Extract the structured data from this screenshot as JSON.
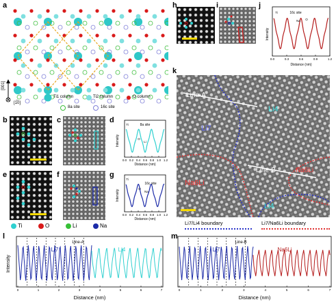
{
  "panels": {
    "a": "a",
    "b": "b",
    "c": "c",
    "d": "d",
    "e": "e",
    "f": "f",
    "g": "g",
    "h": "h",
    "i": "i",
    "j": "j",
    "k": "k",
    "l": "l",
    "m": "m"
  },
  "crystal": {
    "axis_up": "[001]",
    "axis_right": "[1̅0]",
    "legend": [
      "Ti1 column",
      "Ti2 column",
      "O column",
      "8a site",
      "16c site"
    ],
    "colors": {
      "ti1": "#2fc8c8",
      "ti2": "#7fe0e0",
      "o": "#d91a1a",
      "site8a": "#3fbf3f",
      "site16c": "#7f7fd8",
      "unitcell": "#e8a51a"
    }
  },
  "element_legend": {
    "items": [
      {
        "symbol": "Ti",
        "color": "#2fd0d0"
      },
      {
        "symbol": "O",
        "color": "#d91a1a"
      },
      {
        "symbol": "Li",
        "color": "#37c037"
      },
      {
        "symbol": "Na",
        "color": "#1c2ba8"
      }
    ]
  },
  "panel_d": {
    "ylabel": "Intensity",
    "xlabel": "Distance (nm)",
    "xticks": [
      "0.0",
      "0.2",
      "0.4",
      "0.6",
      "0.8",
      "1.0",
      "1.2"
    ],
    "ann_site": "8a site",
    "ann_li": "Li",
    "ann_o": "O",
    "ann_ti": "Ti"
  },
  "panel_g": {
    "ylabel": "Intensity",
    "xlabel": "Distance (nm)",
    "xticks": [
      "0.0",
      "0.2",
      "0.4",
      "0.6",
      "0.8",
      "1.0",
      "1.2"
    ],
    "ann_site": "16c site",
    "ann_na": "Na",
    "ann_o": "O",
    "ann_ti": "Ti"
  },
  "panel_j": {
    "ylabel": "Intensity",
    "xlabel": "Distance (nm)",
    "xticks": [
      "0.0",
      "0.3",
      "0.6",
      "0.9",
      "1.2"
    ],
    "ann_site": "16c site",
    "ann_na": "Na",
    "ann_o": "O",
    "ann_ti": "Ti"
  },
  "panel_k": {
    "line_a": "Line-A",
    "line_b": "Line-B",
    "regions": [
      "Li4",
      "Li7",
      "Na6Li",
      "Na6Li",
      "Li4"
    ],
    "legend_blue": "Li7/Li4 boundary",
    "legend_red": "Li7/Na6Li boundary"
  },
  "panel_l": {
    "ylabel": "Intensity",
    "xlabel": "Distance (nm)",
    "title": "Line-A",
    "left_label": "Li7",
    "right_label": "Li4",
    "xticks": [
      "0",
      "1",
      "2",
      "3",
      "4",
      "5",
      "6",
      "7"
    ]
  },
  "panel_m": {
    "xlabel": "Distance (nm)",
    "title": "Line-B",
    "left_label": "Li7",
    "right_label": "Na6Li",
    "xticks": [
      "0",
      "1",
      "2",
      "3",
      "4",
      "5",
      "6",
      "7"
    ]
  }
}
